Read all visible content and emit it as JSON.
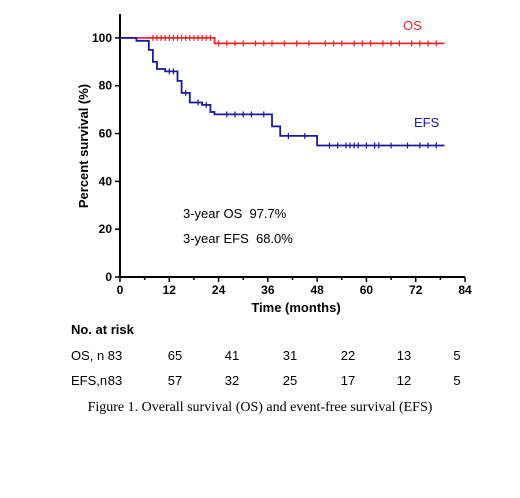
{
  "chart_data": {
    "type": "line",
    "title": "",
    "xlabel": "Time (months)",
    "ylabel": "Percent survival (%)",
    "xlim": [
      0,
      84
    ],
    "ylim": [
      0,
      110
    ],
    "x_ticks": [
      0,
      12,
      24,
      36,
      48,
      60,
      72,
      84
    ],
    "y_ticks": [
      0,
      20,
      40,
      60,
      80,
      100
    ],
    "grid": false,
    "series": [
      {
        "name": "OS",
        "color": "#e8262b",
        "steps": [
          [
            0,
            100
          ],
          [
            23,
            100
          ],
          [
            23,
            97.7
          ],
          [
            79,
            97.7
          ]
        ],
        "censored": [
          [
            8,
            100
          ],
          [
            9,
            100
          ],
          [
            10,
            100
          ],
          [
            11,
            100
          ],
          [
            12,
            100
          ],
          [
            13,
            100
          ],
          [
            14,
            100
          ],
          [
            15,
            100
          ],
          [
            16,
            100
          ],
          [
            17,
            100
          ],
          [
            18,
            100
          ],
          [
            19,
            100
          ],
          [
            20,
            100
          ],
          [
            21,
            100
          ],
          [
            22,
            100
          ],
          [
            24,
            97.7
          ],
          [
            26,
            97.7
          ],
          [
            28,
            97.7
          ],
          [
            30,
            97.7
          ],
          [
            33,
            97.7
          ],
          [
            35,
            97.7
          ],
          [
            37,
            97.7
          ],
          [
            40,
            97.7
          ],
          [
            43,
            97.7
          ],
          [
            46,
            97.7
          ],
          [
            50,
            97.7
          ],
          [
            52,
            97.7
          ],
          [
            54,
            97.7
          ],
          [
            57,
            97.7
          ],
          [
            59,
            97.7
          ],
          [
            61,
            97.7
          ],
          [
            64,
            97.7
          ],
          [
            66,
            97.7
          ],
          [
            68,
            97.7
          ],
          [
            71,
            97.7
          ],
          [
            73,
            97.7
          ],
          [
            75,
            97.7
          ],
          [
            77,
            97.7
          ]
        ]
      },
      {
        "name": "EFS",
        "color": "#1a1a9c",
        "steps": [
          [
            0,
            100
          ],
          [
            4,
            100
          ],
          [
            4,
            98.8
          ],
          [
            7,
            98.8
          ],
          [
            7,
            95
          ],
          [
            8,
            95
          ],
          [
            8,
            90
          ],
          [
            9,
            90
          ],
          [
            9,
            87
          ],
          [
            11,
            87
          ],
          [
            11,
            86
          ],
          [
            14,
            86
          ],
          [
            14,
            82
          ],
          [
            15,
            82
          ],
          [
            15,
            77
          ],
          [
            17,
            77
          ],
          [
            17,
            73
          ],
          [
            20,
            73
          ],
          [
            20,
            72
          ],
          [
            22,
            72
          ],
          [
            22,
            69
          ],
          [
            23,
            69
          ],
          [
            23,
            68
          ],
          [
            37,
            68
          ],
          [
            37,
            63
          ],
          [
            39,
            63
          ],
          [
            39,
            59
          ],
          [
            48,
            59
          ],
          [
            48,
            55
          ],
          [
            79,
            55
          ]
        ],
        "censored": [
          [
            12,
            86
          ],
          [
            13,
            86
          ],
          [
            16,
            77
          ],
          [
            19,
            73
          ],
          [
            21,
            72
          ],
          [
            26,
            68
          ],
          [
            28,
            68
          ],
          [
            30,
            68
          ],
          [
            32,
            68
          ],
          [
            35,
            68
          ],
          [
            41,
            59
          ],
          [
            45,
            59
          ],
          [
            51,
            55
          ],
          [
            53,
            55
          ],
          [
            55,
            55
          ],
          [
            56,
            55
          ],
          [
            57,
            55
          ],
          [
            58,
            55
          ],
          [
            60,
            55
          ],
          [
            62,
            55
          ],
          [
            63,
            55
          ],
          [
            66,
            55
          ],
          [
            70,
            55
          ],
          [
            73,
            55
          ],
          [
            75,
            55
          ],
          [
            77,
            55
          ]
        ]
      }
    ],
    "annotations": [
      "3-year OS  97.7%",
      "3-year EFS  68.0%"
    ],
    "series_labels": [
      "OS",
      "EFS"
    ]
  },
  "risk_table": {
    "title": "No. at risk",
    "rows": [
      {
        "label": "OS, n",
        "values": [
          "83",
          "65",
          "41",
          "31",
          "22",
          "13",
          "5"
        ]
      },
      {
        "label": "EFS,n",
        "values": [
          "83",
          "57",
          "32",
          "25",
          "17",
          "12",
          "5"
        ]
      }
    ]
  },
  "caption": "Figure 1. Overall survival (OS) and event-free survival (EFS)"
}
